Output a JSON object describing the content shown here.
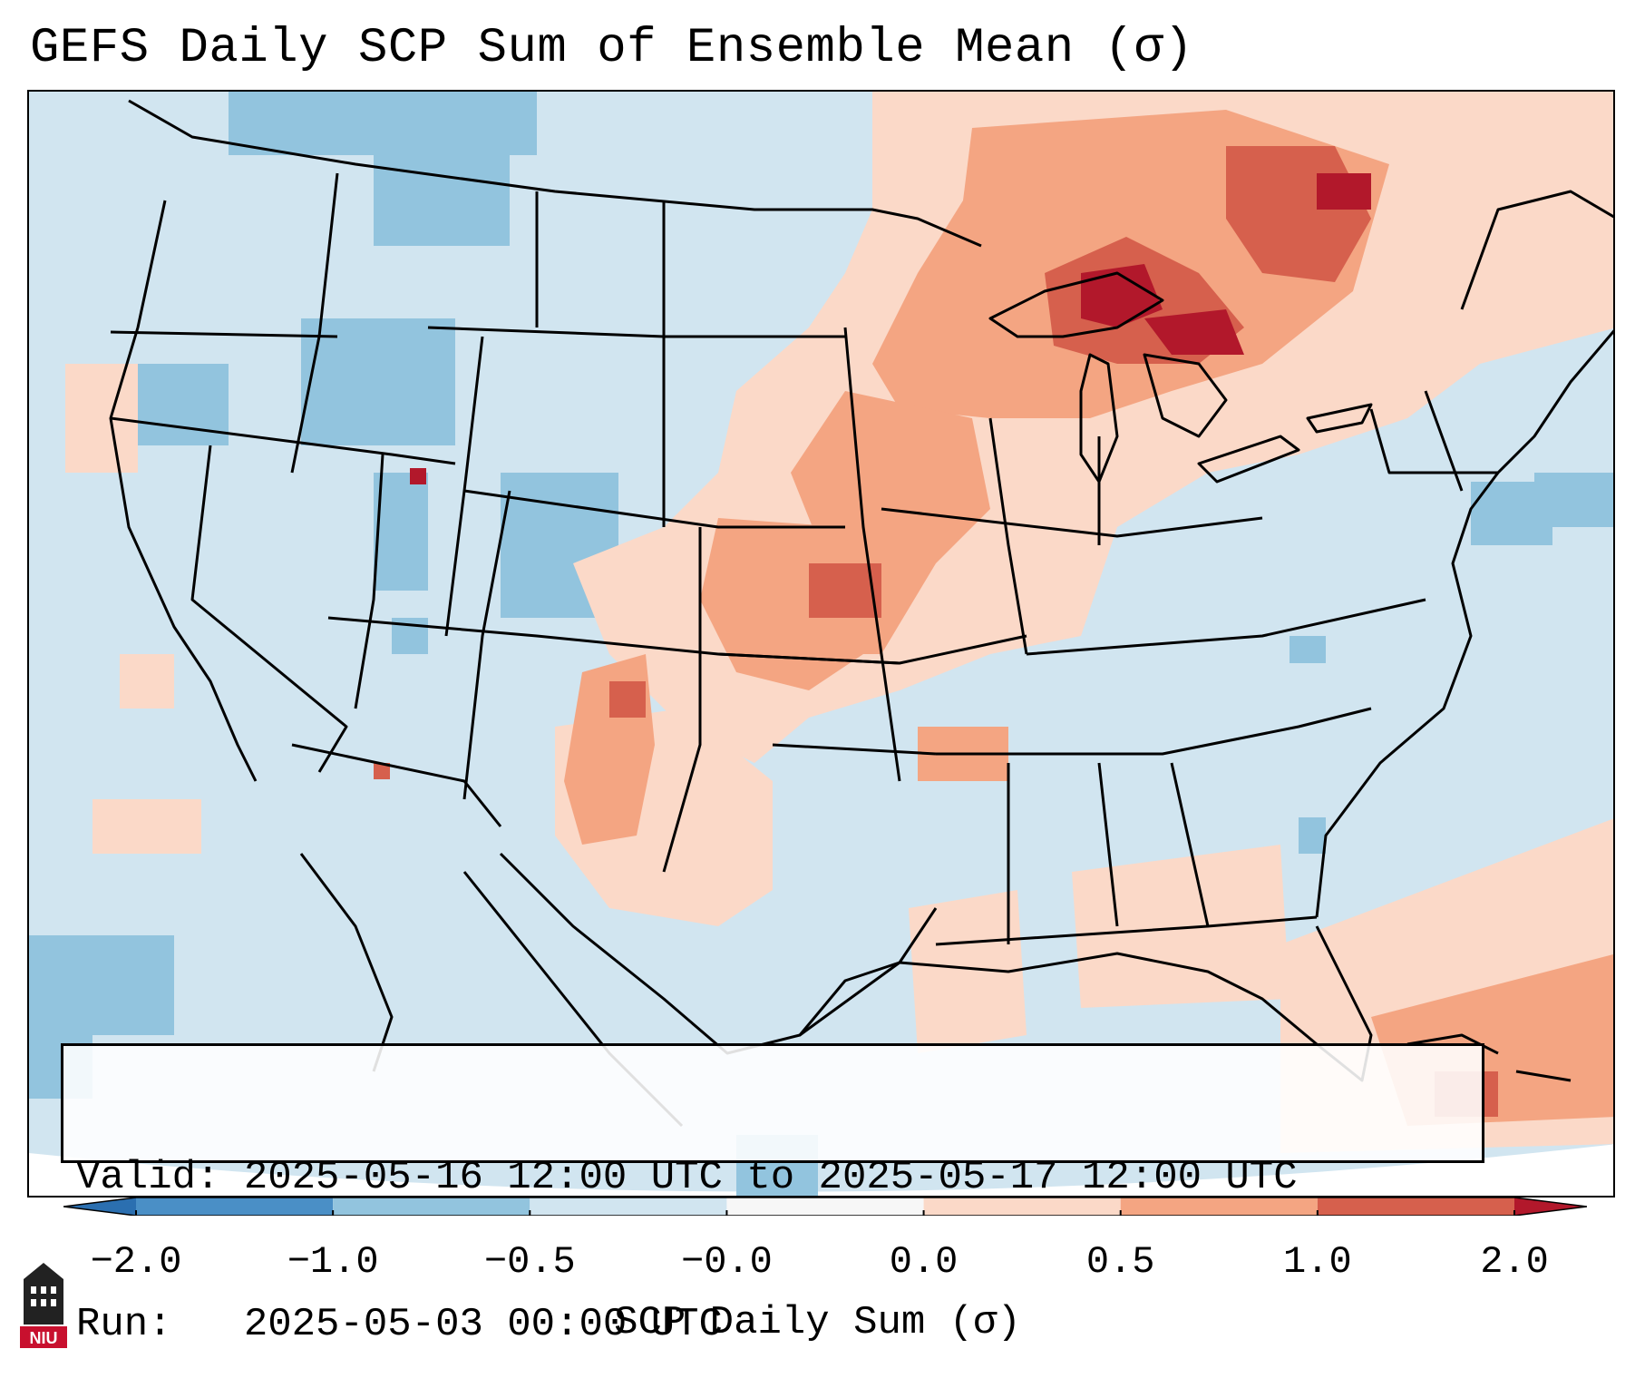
{
  "title": "GEFS Daily SCP Sum of Ensemble Mean (σ)",
  "info": {
    "valid_line": "Valid: 2025-05-16 12:00 UTC to 2025-05-17 12:00 UTC",
    "run_line": "Run:   2025-05-03 00:00 UTC"
  },
  "colorbar": {
    "label": "SCP Daily Sum (σ)",
    "ticks": [
      "−2.0",
      "−1.0",
      "−0.5",
      "−0.0",
      "0.0",
      "0.5",
      "1.0",
      "2.0"
    ],
    "bins": [
      {
        "range": "< -2.0",
        "color": "#2b6fb0"
      },
      {
        "range": "-2.0 to -1.0",
        "color": "#4a8fc6"
      },
      {
        "range": "-1.0 to -0.5",
        "color": "#92c4de"
      },
      {
        "range": "-0.5 to -0.0",
        "color": "#d1e5f0"
      },
      {
        "range": "-0.0 to 0.0",
        "color": "#f7f7f7"
      },
      {
        "range": "0.0 to 0.5",
        "color": "#fbd9c8"
      },
      {
        "range": "0.5 to 1.0",
        "color": "#f4a582"
      },
      {
        "range": "1.0 to 2.0",
        "color": "#d6604d"
      },
      {
        "range": "> 2.0",
        "color": "#b2182b"
      }
    ]
  },
  "map": {
    "background_color": "#d1e5f0",
    "outline_color": "#000000",
    "anomaly_regions": [
      {
        "name": "upper-midwest-great-lakes",
        "level": "strong-positive"
      },
      {
        "name": "southern-plains",
        "level": "moderate-positive"
      },
      {
        "name": "caribbean",
        "level": "moderate-positive"
      },
      {
        "name": "intermountain-west",
        "level": "negative"
      }
    ]
  },
  "logo": {
    "text": "NIU",
    "color": "#c8102e"
  }
}
